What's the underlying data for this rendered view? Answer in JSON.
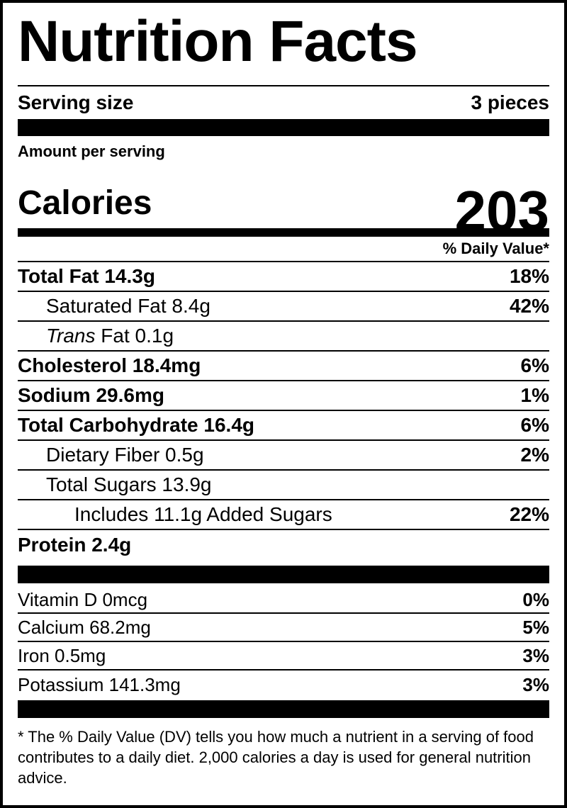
{
  "title": "Nutrition Facts",
  "serving": {
    "label": "Serving size",
    "value": "3 pieces"
  },
  "amount_per_serving": "Amount per serving",
  "calories": {
    "label": "Calories",
    "value": 203
  },
  "dv_header": "% Daily Value*",
  "nutrients": [
    {
      "name": "Total Fat 14.3g",
      "dv": "18%"
    },
    {
      "name": "Saturated Fat 8.4g",
      "dv": "42%"
    },
    {
      "italic": "Trans",
      "name": "Fat 0.1g"
    },
    {
      "name": "Cholesterol 18.4mg",
      "dv": "6%"
    },
    {
      "name": "Sodium 29.6mg",
      "dv": "1%"
    },
    {
      "name": "Total Carbohydrate 16.4g",
      "dv": "6%"
    },
    {
      "name": "Dietary Fiber 0.5g",
      "dv": "2%"
    },
    {
      "name": "Total Sugars 13.9g"
    },
    {
      "name": "Includes 11.1g Added Sugars",
      "dv": "22%"
    },
    {
      "name": "Protein 2.4g"
    }
  ],
  "vitamins": [
    {
      "name": "Vitamin D 0mcg",
      "dv": "0%"
    },
    {
      "name": "Calcium 68.2mg",
      "dv": "5%"
    },
    {
      "name": "Iron 0.5mg",
      "dv": "3%"
    },
    {
      "name": "Potassium 141.3mg",
      "dv": "3%"
    }
  ],
  "footnote": "* The % Daily Value (DV) tells you how much a nutrient in a serving of food contributes to a daily diet. 2,000 calories a day is used for general nutrition advice."
}
